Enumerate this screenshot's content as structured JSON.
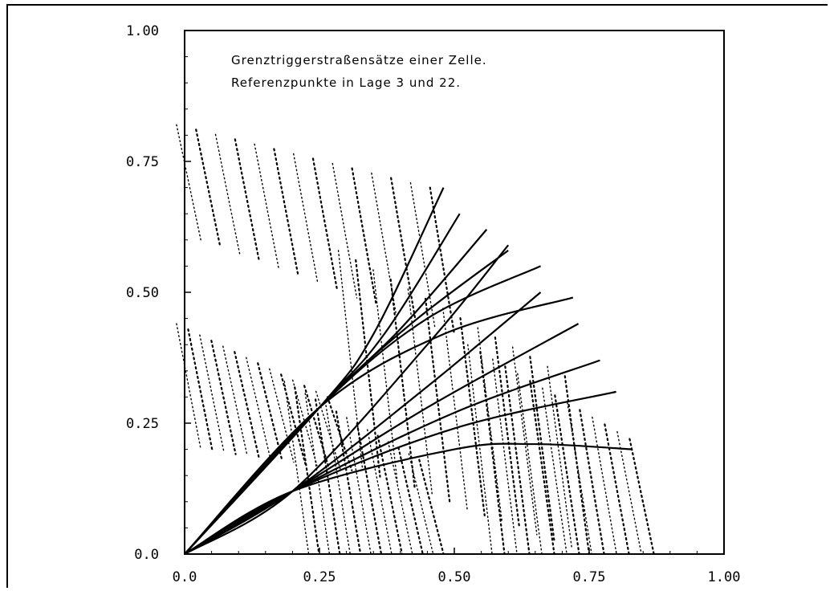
{
  "chart_data": {
    "type": "line",
    "title": "",
    "xlabel": "",
    "ylabel": "",
    "xlim": [
      0,
      1
    ],
    "ylim": [
      0,
      1
    ],
    "x_ticks": [
      "0.0",
      "0.25",
      "0.50",
      "0.75",
      "1.00"
    ],
    "y_ticks": [
      "0.0",
      "0.25",
      "0.50",
      "0.75",
      "1.00"
    ],
    "annotations": [
      "Grenztriggerstraßensätze einer Zelle.",
      "Referenzpunkte in Lage 3 und 22."
    ],
    "grid": false,
    "line_color": "#000000",
    "series": [
      {
        "points": [
          [
            0,
            0
          ],
          [
            0.25,
            0.28
          ],
          [
            0.35,
            0.42
          ],
          [
            0.48,
            0.7
          ]
        ]
      },
      {
        "points": [
          [
            0,
            0
          ],
          [
            0.25,
            0.28
          ],
          [
            0.37,
            0.42
          ],
          [
            0.51,
            0.65
          ]
        ]
      },
      {
        "points": [
          [
            0,
            0
          ],
          [
            0.25,
            0.28
          ],
          [
            0.4,
            0.43
          ],
          [
            0.56,
            0.62
          ]
        ]
      },
      {
        "points": [
          [
            0,
            0
          ],
          [
            0.25,
            0.28
          ],
          [
            0.42,
            0.44
          ],
          [
            0.6,
            0.58
          ]
        ]
      },
      {
        "points": [
          [
            0,
            0
          ],
          [
            0.25,
            0.28
          ],
          [
            0.45,
            0.45
          ],
          [
            0.66,
            0.55
          ]
        ]
      },
      {
        "points": [
          [
            0,
            0
          ],
          [
            0.25,
            0.28
          ],
          [
            0.48,
            0.42
          ],
          [
            0.72,
            0.49
          ]
        ]
      },
      {
        "points": [
          [
            0,
            0
          ],
          [
            0.2,
            0.12
          ],
          [
            0.45,
            0.4
          ],
          [
            0.6,
            0.59
          ]
        ]
      },
      {
        "points": [
          [
            0,
            0
          ],
          [
            0.2,
            0.12
          ],
          [
            0.45,
            0.32
          ],
          [
            0.66,
            0.5
          ]
        ]
      },
      {
        "points": [
          [
            0,
            0
          ],
          [
            0.2,
            0.12
          ],
          [
            0.45,
            0.28
          ],
          [
            0.73,
            0.44
          ]
        ]
      },
      {
        "points": [
          [
            0,
            0
          ],
          [
            0.2,
            0.12
          ],
          [
            0.5,
            0.27
          ],
          [
            0.77,
            0.37
          ]
        ]
      },
      {
        "points": [
          [
            0,
            0
          ],
          [
            0.2,
            0.12
          ],
          [
            0.5,
            0.24
          ],
          [
            0.8,
            0.31
          ]
        ]
      },
      {
        "points": [
          [
            0,
            0
          ],
          [
            0.2,
            0.12
          ],
          [
            0.5,
            0.2
          ],
          [
            0.65,
            0.21
          ],
          [
            0.83,
            0.2
          ]
        ]
      }
    ],
    "dotted_sets": [
      {
        "x_range": [
          0.0,
          0.47
        ],
        "top_range": [
          0.82,
          0.7
        ],
        "bottom_range": [
          0.6,
          0.42
        ]
      },
      {
        "x_range": [
          0.0,
          0.28
        ],
        "top_range": [
          0.44,
          0.3
        ],
        "bottom_range": [
          0.2,
          0.16
        ]
      },
      {
        "x_range": [
          0.2,
          0.45
        ],
        "top_range": [
          0.33,
          0.18
        ],
        "bottom_range": [
          0.0,
          0.0
        ]
      },
      {
        "x_range": [
          0.3,
          0.72
        ],
        "top_range": [
          0.58,
          0.34
        ],
        "bottom_range": [
          0.16,
          0.0
        ]
      },
      {
        "x_range": [
          0.54,
          0.84
        ],
        "top_range": [
          0.4,
          0.22
        ],
        "bottom_range": [
          0.0,
          0.0
        ]
      }
    ]
  }
}
